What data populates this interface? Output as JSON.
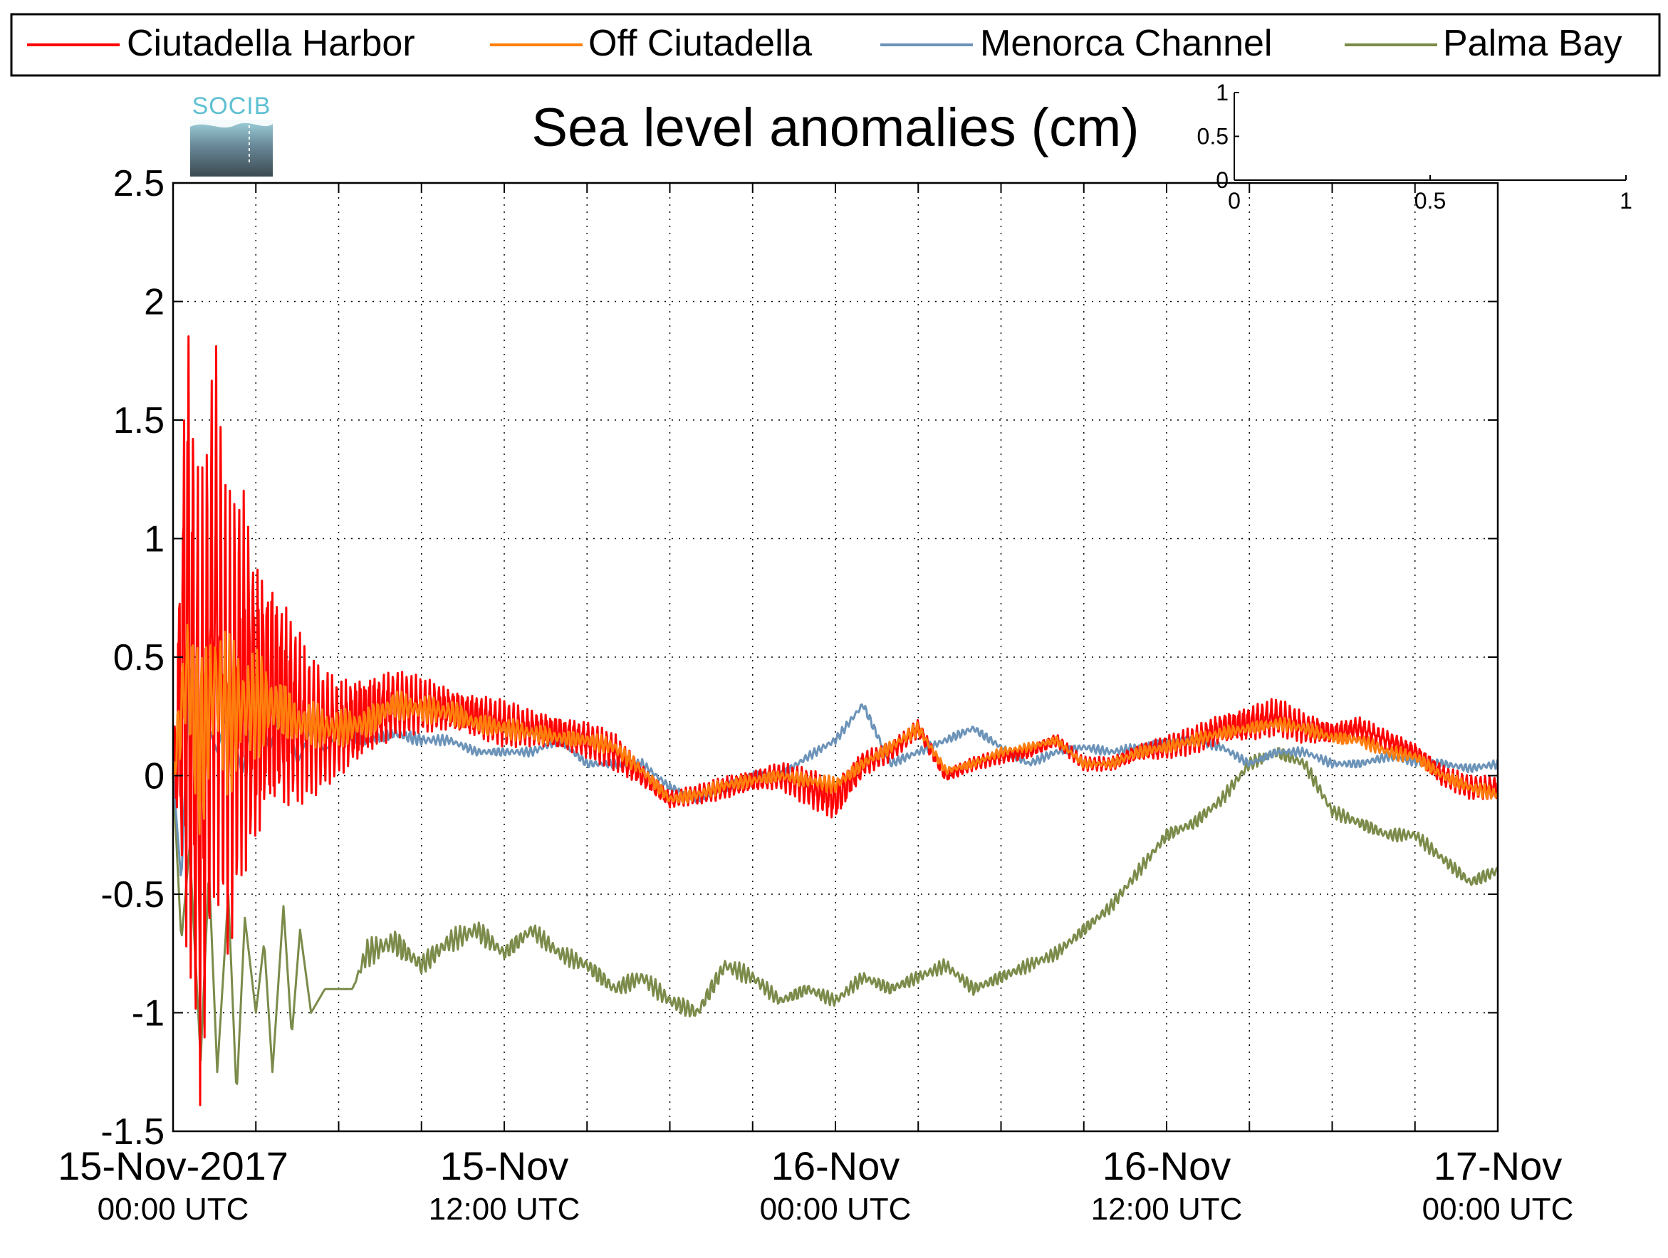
{
  "chart_data": {
    "type": "line",
    "title": "Sea level anomalies (cm)",
    "logo_text": "SOCIB",
    "xlabel": "",
    "ylabel": "",
    "ylim": [
      -1.5,
      2.5
    ],
    "yticks": [
      -1.5,
      -1,
      -0.5,
      0,
      0.5,
      1,
      1.5,
      2,
      2.5
    ],
    "ytick_labels": [
      "-1.5",
      "-1",
      "-0.5",
      "0",
      "0.5",
      "1",
      "1.5",
      "2",
      "2.5"
    ],
    "xlim_hours": [
      0,
      48
    ],
    "x_minor_grid_every_hours": 3,
    "grid": true,
    "grid_style": "dotted",
    "x_tick_labels": [
      {
        "hour": 0,
        "date": "15-Nov-2017",
        "time": "00:00 UTC"
      },
      {
        "hour": 12,
        "date": "15-Nov",
        "time": "12:00 UTC"
      },
      {
        "hour": 24,
        "date": "16-Nov",
        "time": "00:00 UTC"
      },
      {
        "hour": 36,
        "date": "16-Nov",
        "time": "12:00 UTC"
      },
      {
        "hour": 48,
        "date": "17-Nov",
        "time": "00:00 UTC"
      }
    ],
    "legend": {
      "placement": "top",
      "orientation": "horizontal"
    },
    "series": [
      {
        "name": "Ciutadella Harbor",
        "color": "#ff0000",
        "x": [
          0,
          0.5,
          1,
          1.5,
          2,
          2.5,
          3,
          3.5,
          4,
          4.5,
          5,
          5.5,
          6,
          7,
          8,
          9,
          10,
          11,
          12,
          13,
          14,
          15,
          16,
          17,
          18,
          19,
          20,
          21,
          22,
          23,
          24,
          25,
          26,
          27,
          28,
          29,
          30,
          31,
          32,
          33,
          34,
          35,
          36,
          37,
          38,
          39,
          40,
          41,
          42,
          43,
          44,
          45,
          46,
          47,
          48
        ],
        "y": [
          0.0,
          0.6,
          -0.1,
          0.7,
          0.2,
          0.4,
          0.3,
          0.35,
          0.3,
          0.25,
          0.2,
          0.2,
          0.2,
          0.25,
          0.3,
          0.3,
          0.28,
          0.25,
          0.22,
          0.2,
          0.18,
          0.15,
          0.1,
          0.0,
          -0.1,
          -0.08,
          -0.05,
          -0.02,
          0.0,
          -0.05,
          -0.1,
          0.05,
          0.1,
          0.2,
          0.0,
          0.05,
          0.08,
          0.1,
          0.15,
          0.05,
          0.05,
          0.1,
          0.12,
          0.15,
          0.2,
          0.22,
          0.25,
          0.2,
          0.18,
          0.2,
          0.15,
          0.1,
          0.0,
          -0.05,
          -0.05
        ],
        "amplitude": [
          0.0,
          1.6,
          1.4,
          1.2,
          1.0,
          0.9,
          0.7,
          0.6,
          0.5,
          0.4,
          0.3,
          0.25,
          0.22,
          0.2,
          0.15,
          0.12,
          0.1,
          0.1,
          0.1,
          0.08,
          0.08,
          0.08,
          0.08,
          0.05,
          0.04,
          0.04,
          0.05,
          0.05,
          0.06,
          0.08,
          0.1,
          0.06,
          0.04,
          0.04,
          0.03,
          0.03,
          0.03,
          0.03,
          0.03,
          0.03,
          0.03,
          0.04,
          0.05,
          0.06,
          0.07,
          0.08,
          0.08,
          0.07,
          0.05,
          0.05,
          0.04,
          0.04,
          0.05,
          0.05,
          0.05
        ]
      },
      {
        "name": "Off Ciutadella",
        "color": "#ff7f0e",
        "x": [
          0,
          0.5,
          1,
          1.5,
          2,
          2.5,
          3,
          3.5,
          4,
          4.5,
          5,
          5.5,
          6,
          7,
          8,
          9,
          10,
          11,
          12,
          13,
          14,
          15,
          16,
          17,
          18,
          19,
          20,
          21,
          22,
          23,
          24,
          25,
          26,
          27,
          28,
          29,
          30,
          31,
          32,
          33,
          34,
          35,
          36,
          37,
          38,
          39,
          40,
          41,
          42,
          43,
          44,
          45,
          46,
          47,
          48
        ],
        "y": [
          0.0,
          0.45,
          0.1,
          0.4,
          0.25,
          0.3,
          0.3,
          0.3,
          0.28,
          0.22,
          0.22,
          0.2,
          0.2,
          0.22,
          0.3,
          0.28,
          0.27,
          0.22,
          0.2,
          0.18,
          0.16,
          0.15,
          0.12,
          0.02,
          -0.1,
          -0.08,
          -0.04,
          -0.02,
          0.0,
          -0.02,
          -0.04,
          0.05,
          0.12,
          0.2,
          0.02,
          0.05,
          0.1,
          0.12,
          0.15,
          0.05,
          0.05,
          0.1,
          0.12,
          0.15,
          0.18,
          0.2,
          0.22,
          0.2,
          0.16,
          0.15,
          0.1,
          0.08,
          0.0,
          -0.05,
          -0.08
        ],
        "amplitude": [
          0.0,
          0.5,
          0.45,
          0.4,
          0.35,
          0.3,
          0.25,
          0.2,
          0.15,
          0.12,
          0.1,
          0.1,
          0.08,
          0.08,
          0.07,
          0.06,
          0.06,
          0.05,
          0.05,
          0.04,
          0.04,
          0.04,
          0.04,
          0.03,
          0.03,
          0.03,
          0.03,
          0.03,
          0.03,
          0.03,
          0.04,
          0.03,
          0.03,
          0.03,
          0.02,
          0.02,
          0.02,
          0.02,
          0.02,
          0.02,
          0.02,
          0.03,
          0.03,
          0.03,
          0.03,
          0.03,
          0.03,
          0.03,
          0.03,
          0.03,
          0.03,
          0.03,
          0.03,
          0.03,
          0.03
        ]
      },
      {
        "name": "Menorca Channel",
        "color": "#6c93b8",
        "x": [
          0,
          0.3,
          0.6,
          1,
          1.3,
          1.6,
          2,
          2.5,
          3,
          3.5,
          4,
          4.5,
          5,
          5.5,
          6,
          7,
          8,
          9,
          10,
          11,
          12,
          13,
          14,
          15,
          16,
          17,
          18,
          19,
          20,
          21,
          22,
          23,
          24,
          25,
          26,
          27,
          28,
          29,
          30,
          31,
          32,
          33,
          34,
          35,
          36,
          37,
          38,
          39,
          40,
          41,
          42,
          43,
          44,
          45,
          46,
          47,
          48
        ],
        "y": [
          0.0,
          -0.45,
          0.45,
          0.0,
          0.2,
          0.1,
          0.3,
          0.0,
          0.35,
          0.1,
          0.35,
          0.05,
          0.2,
          0.1,
          0.2,
          0.15,
          0.18,
          0.15,
          0.15,
          0.1,
          0.1,
          0.1,
          0.15,
          0.05,
          0.05,
          0.05,
          -0.05,
          -0.1,
          -0.05,
          0.0,
          0.0,
          0.08,
          0.15,
          0.3,
          0.05,
          0.1,
          0.15,
          0.2,
          0.12,
          0.05,
          0.1,
          0.12,
          0.1,
          0.12,
          0.14,
          0.15,
          0.12,
          0.05,
          0.1,
          0.1,
          0.05,
          0.05,
          0.08,
          0.06,
          0.05,
          0.03,
          0.05
        ],
        "amplitude": [
          0,
          0,
          0,
          0,
          0,
          0,
          0,
          0,
          0,
          0,
          0,
          0,
          0,
          0,
          0.03,
          0.03,
          0.03,
          0.03,
          0.02,
          0.02,
          0.02,
          0.02,
          0.02,
          0.02,
          0.02,
          0.02,
          0.02,
          0.02,
          0.02,
          0.02,
          0.02,
          0.02,
          0.02,
          0.02,
          0.02,
          0.02,
          0.02,
          0.02,
          0.02,
          0.02,
          0.02,
          0.02,
          0.02,
          0.02,
          0.02,
          0.02,
          0.02,
          0.02,
          0.02,
          0.02,
          0.02,
          0.02,
          0.02,
          0.02,
          0.02,
          0.02,
          0.02
        ]
      },
      {
        "name": "Palma Bay",
        "color": "#7b8b4a",
        "x": [
          0,
          0.3,
          0.6,
          1,
          1.3,
          1.6,
          2,
          2.3,
          2.6,
          3,
          3.3,
          3.6,
          4,
          4.3,
          4.6,
          5,
          5.5,
          6,
          6.5,
          7,
          8,
          9,
          10,
          11,
          12,
          13,
          14,
          15,
          16,
          17,
          18,
          19,
          20,
          21,
          22,
          23,
          24,
          25,
          26,
          27,
          28,
          29,
          30,
          31,
          32,
          33,
          34,
          35,
          36,
          37,
          38,
          39,
          40,
          41,
          42,
          43,
          44,
          45,
          46,
          47,
          48
        ],
        "y": [
          0.0,
          -0.7,
          -0.3,
          -1.2,
          -0.4,
          -1.25,
          -0.5,
          -1.35,
          -0.6,
          -1.0,
          -0.7,
          -1.25,
          -0.55,
          -1.1,
          -0.65,
          -1.0,
          -0.9,
          -0.9,
          -0.9,
          -0.75,
          -0.7,
          -0.8,
          -0.7,
          -0.65,
          -0.75,
          -0.65,
          -0.75,
          -0.8,
          -0.9,
          -0.85,
          -0.95,
          -1.0,
          -0.8,
          -0.85,
          -0.95,
          -0.9,
          -0.95,
          -0.85,
          -0.9,
          -0.85,
          -0.8,
          -0.9,
          -0.85,
          -0.8,
          -0.75,
          -0.65,
          -0.55,
          -0.4,
          -0.25,
          -0.2,
          -0.1,
          0.05,
          0.1,
          0.05,
          -0.15,
          -0.2,
          -0.25,
          -0.25,
          -0.35,
          -0.45,
          -0.4
        ],
        "amplitude": [
          0,
          0,
          0,
          0,
          0,
          0,
          0,
          0,
          0,
          0,
          0,
          0,
          0,
          0,
          0,
          0,
          0,
          0,
          0,
          0.06,
          0.06,
          0.05,
          0.05,
          0.05,
          0.04,
          0.04,
          0.04,
          0.04,
          0.04,
          0.04,
          0.04,
          0.04,
          0.04,
          0.04,
          0.03,
          0.03,
          0.03,
          0.03,
          0.03,
          0.03,
          0.03,
          0.03,
          0.03,
          0.03,
          0.03,
          0.03,
          0.03,
          0.03,
          0.03,
          0.03,
          0.03,
          0.03,
          0.03,
          0.03,
          0.03,
          0.03,
          0.03,
          0.03,
          0.03,
          0.03,
          0.03
        ]
      }
    ],
    "inset_axes": {
      "xlim": [
        0,
        1
      ],
      "ylim": [
        0,
        1
      ],
      "xticks": [
        0,
        0.5,
        1
      ],
      "xtick_labels": [
        "0",
        "0.5",
        "1"
      ],
      "yticks": [
        0,
        0.5,
        1
      ],
      "ytick_labels": [
        "0",
        "0.5",
        "1"
      ]
    }
  }
}
